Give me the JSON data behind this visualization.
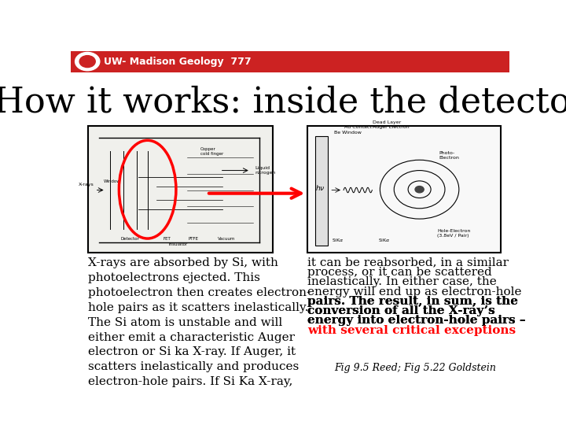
{
  "background_color": "#ffffff",
  "header_bg_color": "#cc2222",
  "header_text": "UW- Madison Geology  777",
  "header_text_color": "#ffffff",
  "header_font_size": 9,
  "title": "How it works: inside the detector",
  "title_font_size": 32,
  "title_color": "#000000",
  "left_body_text": "X-rays are absorbed by Si, with\nphotoelectrons ejected. This\nphotoelectron then creates electron-\nhole pairs as it scatters inelastically.\nThe Si atom is unstable and will\neither emit a characteristic Auger\nelectron or Si ka X-ray. If Auger, it\nscatters inelastically and produces\nelectron-hole pairs. If Si Ka X-ray,",
  "right_body_plain": [
    "it can be reabsorbed, in a similar",
    "process, or it can be scattered",
    "inelastically. In either case, the",
    "energy will end up as electron-hole"
  ],
  "right_bold_lines": [
    "pairs. The result, in sum, is the",
    "conversion of all the X-ray’s",
    "energy into electron-hole pairs –"
  ],
  "right_red_line": "with several critical exceptions",
  "right_red_end": ".",
  "caption": "Fig 9.5 Reed; Fig 5.22 Goldstein",
  "body_font_size": 11,
  "caption_font_size": 9
}
